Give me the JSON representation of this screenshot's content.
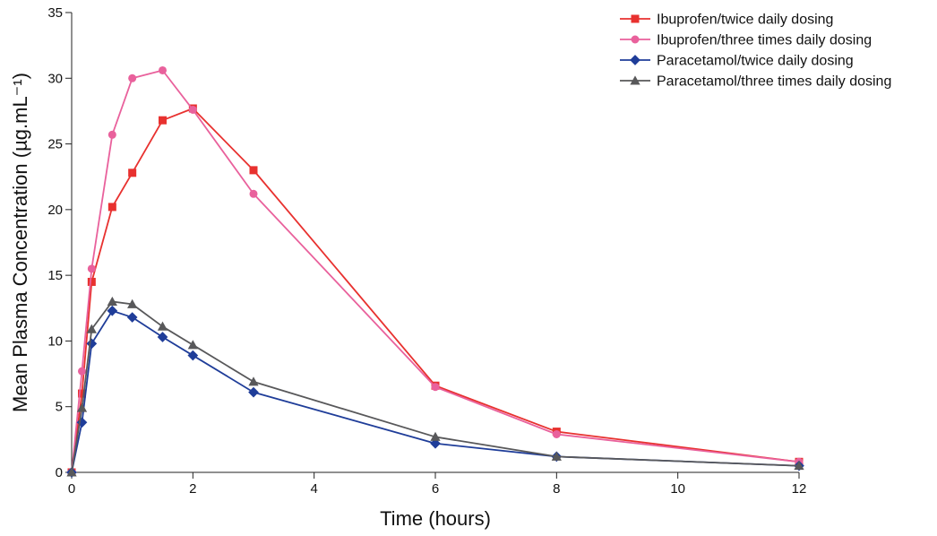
{
  "chart_data": {
    "type": "line",
    "xlabel": "Time (hours)",
    "ylabel": "Mean Plasma Concentration (µg.mL⁻¹)",
    "xlim": [
      0,
      12
    ],
    "ylim": [
      0,
      35
    ],
    "xticks": [
      0,
      2,
      4,
      6,
      8,
      10,
      12
    ],
    "yticks": [
      0,
      5,
      10,
      15,
      20,
      25,
      30,
      35
    ],
    "grid": false,
    "legend_position": "top-right",
    "series": [
      {
        "name": "Ibuprofen/twice daily dosing",
        "color": "#e8312f",
        "marker": "square",
        "x": [
          0,
          0.17,
          0.33,
          0.67,
          1,
          1.5,
          2,
          3,
          6,
          8,
          12
        ],
        "y": [
          0,
          6.0,
          14.5,
          20.2,
          22.8,
          26.8,
          27.7,
          23.0,
          6.6,
          3.1,
          0.8
        ]
      },
      {
        "name": "Ibuprofen/three times daily dosing",
        "color": "#e9619c",
        "marker": "circle",
        "x": [
          0,
          0.17,
          0.33,
          0.67,
          1,
          1.5,
          2,
          3,
          6,
          8,
          12
        ],
        "y": [
          0,
          7.7,
          15.5,
          25.7,
          30.0,
          30.6,
          27.6,
          21.2,
          6.5,
          2.9,
          0.8
        ]
      },
      {
        "name": "Paracetamol/twice daily dosing",
        "color": "#1f3d99",
        "marker": "diamond",
        "x": [
          0,
          0.17,
          0.33,
          0.67,
          1,
          1.5,
          2,
          3,
          6,
          8,
          12
        ],
        "y": [
          0,
          3.8,
          9.8,
          12.3,
          11.8,
          10.3,
          8.9,
          6.1,
          2.2,
          1.2,
          0.5
        ]
      },
      {
        "name": "Paracetamol/three times daily dosing",
        "color": "#58585a",
        "marker": "triangle",
        "x": [
          0,
          0.17,
          0.33,
          0.67,
          1,
          1.5,
          2,
          3,
          6,
          8,
          12
        ],
        "y": [
          0,
          4.9,
          10.9,
          13.0,
          12.8,
          11.1,
          9.7,
          6.9,
          2.7,
          1.2,
          0.5
        ]
      }
    ]
  }
}
